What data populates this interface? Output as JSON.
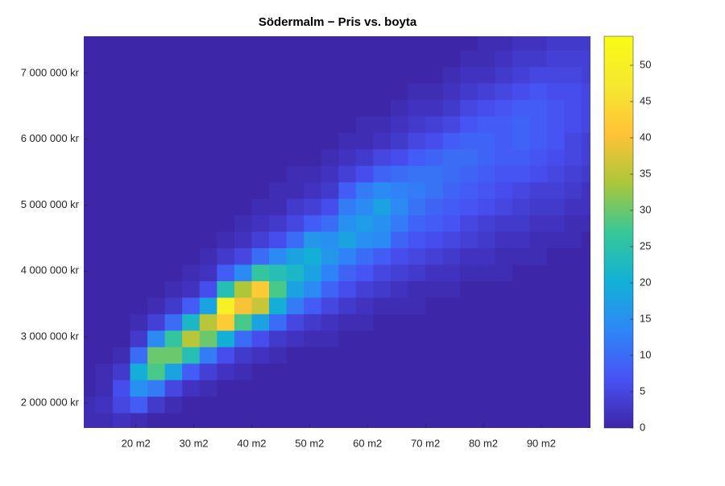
{
  "chart_data": {
    "type": "heatmap",
    "title": "Södermalm − Pris vs. boyta",
    "colormap": "parula",
    "xlim": [
      11,
      98.5
    ],
    "ylim": [
      1620000,
      7560000
    ],
    "xticks": [
      {
        "value": 20,
        "label": "20 m2"
      },
      {
        "value": 30,
        "label": "30 m2"
      },
      {
        "value": 40,
        "label": "40 m2"
      },
      {
        "value": 50,
        "label": "50 m2"
      },
      {
        "value": 60,
        "label": "60 m2"
      },
      {
        "value": 70,
        "label": "70 m2"
      },
      {
        "value": 80,
        "label": "80 m2"
      },
      {
        "value": 90,
        "label": "90 m2"
      }
    ],
    "yticks": [
      {
        "value": 2000000,
        "label": "2 000 000 kr"
      },
      {
        "value": 3000000,
        "label": "3 000 000 kr"
      },
      {
        "value": 4000000,
        "label": "4 000 000 kr"
      },
      {
        "value": 5000000,
        "label": "5 000 000 kr"
      },
      {
        "value": 6000000,
        "label": "6 000 000 kr"
      },
      {
        "value": 7000000,
        "label": "7 000 000 kr"
      }
    ],
    "clim": [
      0,
      54
    ],
    "cticks": [
      0,
      5,
      10,
      15,
      20,
      25,
      30,
      35,
      40,
      45,
      50
    ],
    "x_bins": [
      10,
      13,
      16,
      19,
      22,
      25,
      28,
      31,
      34,
      37,
      40,
      43,
      46,
      49,
      52,
      55,
      58,
      61,
      64,
      67,
      70,
      73,
      76,
      79,
      82,
      85,
      88,
      91,
      94,
      97,
      100
    ],
    "y_bins": [
      1600000,
      1850000,
      2100000,
      2350000,
      2600000,
      2850000,
      3100000,
      3350000,
      3600000,
      3850000,
      4100000,
      4350000,
      4600000,
      4850000,
      5100000,
      5350000,
      5600000,
      5850000,
      6100000,
      6350000,
      6600000,
      6850000,
      7100000,
      7350000,
      7600000
    ],
    "z": [
      [
        1,
        1,
        0,
        0,
        0,
        0,
        0,
        0,
        0,
        0,
        0,
        0,
        0,
        0,
        0,
        0,
        0,
        0,
        0,
        0,
        0,
        0,
        0,
        0
      ],
      [
        1,
        2,
        1,
        1,
        0,
        0,
        0,
        0,
        0,
        0,
        0,
        0,
        0,
        0,
        0,
        0,
        0,
        0,
        0,
        0,
        0,
        0,
        0,
        0
      ],
      [
        2,
        5,
        6,
        3,
        1,
        0,
        0,
        0,
        0,
        0,
        0,
        0,
        0,
        0,
        0,
        0,
        0,
        0,
        0,
        0,
        0,
        0,
        0,
        0
      ],
      [
        1,
        8,
        15,
        20,
        10,
        3,
        1,
        0,
        0,
        0,
        0,
        0,
        0,
        0,
        0,
        0,
        0,
        0,
        0,
        0,
        0,
        0,
        0,
        0
      ],
      [
        0,
        3,
        12,
        28,
        30,
        14,
        4,
        1,
        0,
        0,
        0,
        0,
        0,
        0,
        0,
        0,
        0,
        0,
        0,
        0,
        0,
        0,
        0,
        0
      ],
      [
        0,
        1,
        5,
        18,
        30,
        26,
        10,
        3,
        1,
        0,
        0,
        0,
        0,
        0,
        0,
        0,
        0,
        0,
        0,
        0,
        0,
        0,
        0,
        0
      ],
      [
        0,
        0,
        2,
        8,
        24,
        35,
        22,
        8,
        2,
        1,
        0,
        0,
        0,
        0,
        0,
        0,
        0,
        0,
        0,
        0,
        0,
        0,
        0,
        0
      ],
      [
        0,
        0,
        1,
        4,
        12,
        30,
        35,
        18,
        6,
        2,
        1,
        0,
        0,
        0,
        0,
        0,
        0,
        0,
        0,
        0,
        0,
        0,
        0,
        0
      ],
      [
        0,
        0,
        0,
        2,
        6,
        20,
        42,
        50,
        24,
        8,
        3,
        1,
        0,
        0,
        0,
        0,
        0,
        0,
        0,
        0,
        0,
        0,
        0,
        0
      ],
      [
        0,
        0,
        0,
        1,
        3,
        10,
        28,
        40,
        34,
        14,
        5,
        2,
        1,
        0,
        0,
        0,
        0,
        0,
        0,
        0,
        0,
        0,
        0,
        0
      ],
      [
        0,
        0,
        0,
        0,
        2,
        6,
        18,
        36,
        42,
        26,
        10,
        4,
        2,
        1,
        0,
        0,
        0,
        0,
        0,
        0,
        0,
        0,
        0,
        0
      ],
      [
        0,
        0,
        0,
        0,
        1,
        3,
        10,
        20,
        28,
        24,
        14,
        6,
        3,
        1,
        1,
        0,
        0,
        0,
        0,
        0,
        0,
        0,
        0,
        0
      ],
      [
        0,
        0,
        0,
        0,
        0,
        2,
        5,
        12,
        18,
        22,
        18,
        10,
        5,
        3,
        1,
        1,
        0,
        0,
        0,
        0,
        0,
        0,
        0,
        0
      ],
      [
        0,
        0,
        0,
        0,
        0,
        1,
        3,
        8,
        14,
        18,
        20,
        16,
        8,
        4,
        2,
        1,
        0,
        0,
        0,
        0,
        0,
        0,
        0,
        0
      ],
      [
        0,
        0,
        0,
        0,
        0,
        1,
        2,
        5,
        9,
        13,
        16,
        15,
        10,
        6,
        3,
        2,
        1,
        0,
        0,
        0,
        0,
        0,
        0,
        0
      ],
      [
        0,
        0,
        0,
        0,
        0,
        0,
        1,
        3,
        6,
        9,
        13,
        18,
        15,
        12,
        8,
        4,
        2,
        1,
        0,
        0,
        0,
        0,
        0,
        0
      ],
      [
        0,
        0,
        0,
        0,
        0,
        0,
        1,
        2,
        4,
        7,
        10,
        15,
        17,
        14,
        12,
        6,
        3,
        1,
        1,
        0,
        0,
        0,
        0,
        0
      ],
      [
        0,
        0,
        0,
        0,
        0,
        0,
        0,
        1,
        3,
        5,
        8,
        14,
        15,
        18,
        14,
        9,
        5,
        2,
        1,
        0,
        0,
        0,
        0,
        0
      ],
      [
        0,
        0,
        0,
        0,
        0,
        0,
        0,
        1,
        2,
        4,
        6,
        9,
        12,
        14,
        13,
        10,
        6,
        3,
        2,
        1,
        0,
        0,
        0,
        0
      ],
      [
        0,
        0,
        0,
        0,
        0,
        0,
        0,
        1,
        1,
        3,
        5,
        7,
        9,
        11,
        12,
        11,
        8,
        5,
        3,
        2,
        1,
        0,
        0,
        0
      ],
      [
        0,
        0,
        0,
        0,
        0,
        0,
        0,
        0,
        1,
        2,
        4,
        6,
        8,
        9,
        11,
        11,
        9,
        6,
        4,
        2,
        1,
        0,
        0,
        0
      ],
      [
        0,
        0,
        0,
        0,
        0,
        0,
        0,
        0,
        1,
        2,
        3,
        5,
        7,
        8,
        9,
        10,
        10,
        8,
        5,
        3,
        2,
        1,
        0,
        0
      ],
      [
        0,
        0,
        0,
        0,
        0,
        0,
        0,
        0,
        0,
        1,
        2,
        4,
        5,
        7,
        8,
        9,
        10,
        9,
        7,
        5,
        3,
        2,
        1,
        0
      ],
      [
        0,
        0,
        0,
        0,
        0,
        0,
        0,
        0,
        0,
        1,
        2,
        3,
        4,
        6,
        7,
        8,
        9,
        9,
        8,
        6,
        4,
        2,
        1,
        1
      ],
      [
        0,
        0,
        0,
        0,
        0,
        0,
        0,
        0,
        0,
        1,
        1,
        2,
        3,
        5,
        6,
        7,
        8,
        8,
        8,
        7,
        5,
        3,
        2,
        1
      ],
      [
        0,
        0,
        0,
        0,
        0,
        0,
        0,
        0,
        0,
        0,
        1,
        2,
        3,
        4,
        5,
        7,
        8,
        9,
        9,
        8,
        6,
        4,
        3,
        2
      ],
      [
        0,
        0,
        0,
        0,
        0,
        0,
        0,
        0,
        0,
        0,
        1,
        1,
        2,
        3,
        4,
        6,
        7,
        8,
        8,
        8,
        7,
        5,
        3,
        2
      ],
      [
        0,
        0,
        0,
        0,
        0,
        0,
        0,
        0,
        0,
        0,
        0,
        1,
        2,
        3,
        4,
        5,
        6,
        7,
        7,
        7,
        6,
        5,
        4,
        3
      ],
      [
        0,
        0,
        0,
        0,
        0,
        0,
        0,
        0,
        0,
        0,
        0,
        1,
        1,
        2,
        3,
        4,
        5,
        5,
        6,
        6,
        6,
        5,
        4,
        3
      ],
      [
        0,
        0,
        0,
        0,
        0,
        0,
        0,
        0,
        0,
        0,
        0,
        0,
        1,
        2,
        2,
        3,
        4,
        4,
        5,
        5,
        5,
        4,
        4,
        3
      ]
    ]
  }
}
